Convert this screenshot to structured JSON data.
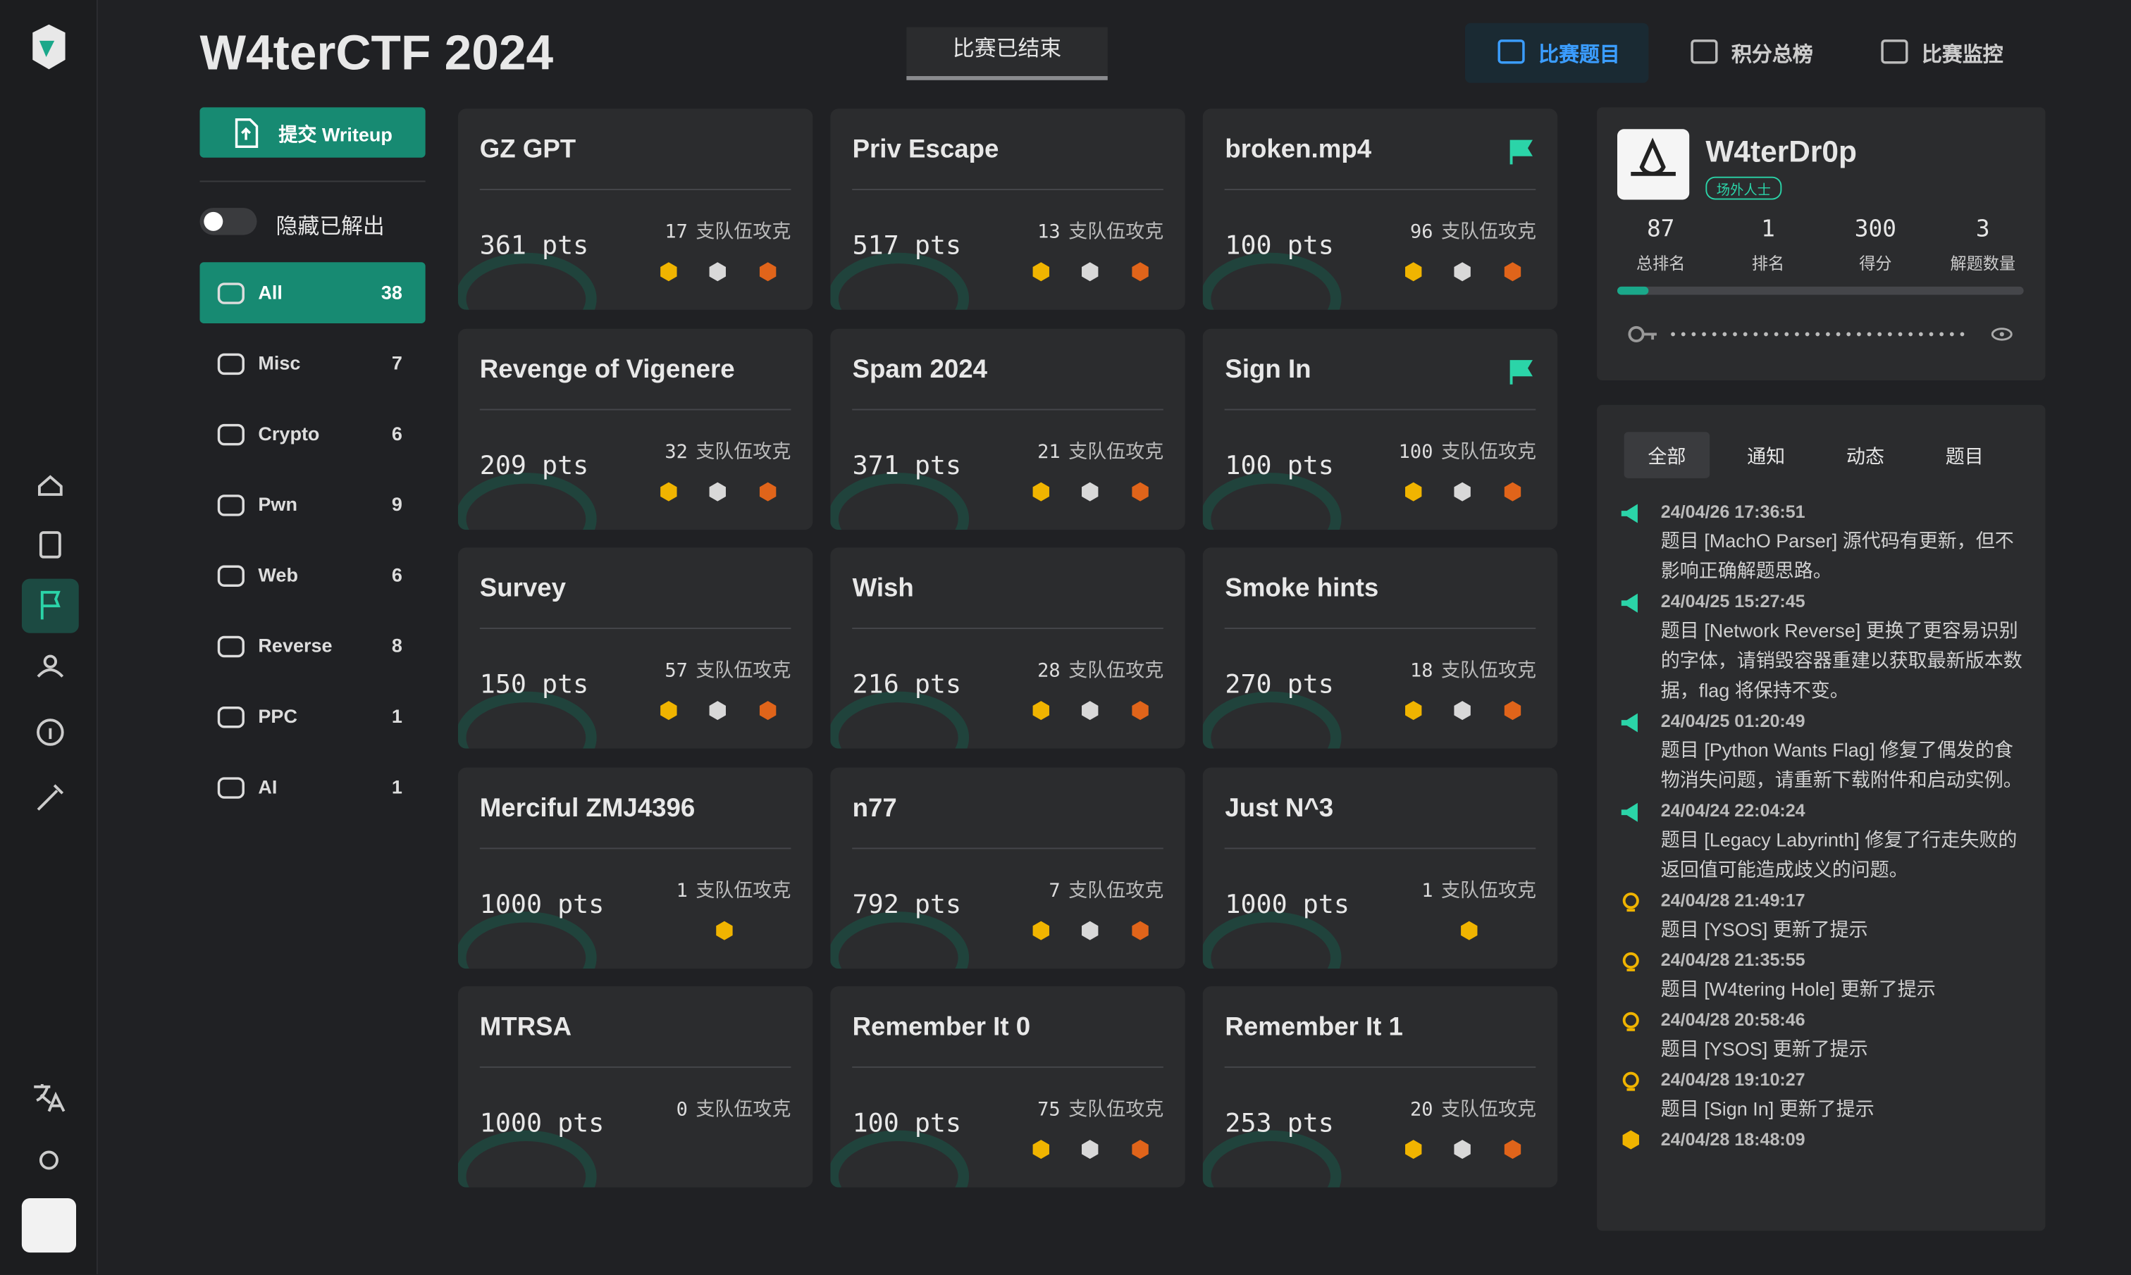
{
  "header": {
    "title": "W4terCTF 2024",
    "status": "比赛已结束",
    "nav": [
      "比赛题目",
      "积分总榜",
      "比赛监控"
    ]
  },
  "sidebar": {
    "submit": "提交 Writeup",
    "hide_solved": "隐藏已解出",
    "categories": [
      {
        "name": "All",
        "count": 38
      },
      {
        "name": "Misc",
        "count": 7
      },
      {
        "name": "Crypto",
        "count": 6
      },
      {
        "name": "Pwn",
        "count": 9
      },
      {
        "name": "Web",
        "count": 6
      },
      {
        "name": "Reverse",
        "count": 8
      },
      {
        "name": "PPC",
        "count": 1
      },
      {
        "name": "AI",
        "count": 1
      }
    ]
  },
  "solved_label": "支队伍攻克",
  "challenges": [
    {
      "title": "GZ GPT",
      "points": "361 pts",
      "solves": 17
    },
    {
      "title": "Priv Escape",
      "points": "517 pts",
      "solves": 13
    },
    {
      "title": "broken.mp4",
      "points": "100 pts",
      "solves": 96
    },
    {
      "title": "Revenge of Vigenere",
      "points": "209 pts",
      "solves": 32
    },
    {
      "title": "Spam 2024",
      "points": "371 pts",
      "solves": 21
    },
    {
      "title": "Sign In",
      "points": "100 pts",
      "solves": 100
    },
    {
      "title": "Survey",
      "points": "150 pts",
      "solves": 57
    },
    {
      "title": "Wish",
      "points": "216 pts",
      "solves": 28
    },
    {
      "title": "Smoke hints",
      "points": "270 pts",
      "solves": 18
    },
    {
      "title": "Merciful ZMJ4396",
      "points": "1000 pts",
      "solves": 1
    },
    {
      "title": "n77",
      "points": "792 pts",
      "solves": 7
    },
    {
      "title": "Just N^3",
      "points": "1000 pts",
      "solves": 1
    },
    {
      "title": "MTRSA",
      "points": "1000 pts",
      "solves": 0
    },
    {
      "title": "Remember It 0",
      "points": "100 pts",
      "solves": 75
    },
    {
      "title": "Remember It 1",
      "points": "253 pts",
      "solves": 20
    }
  ],
  "profile": {
    "name": "W4terDr0p",
    "tag": "场外人士",
    "stats": [
      {
        "value": 87,
        "label": "总排名"
      },
      {
        "value": 1,
        "label": "排名"
      },
      {
        "value": 300,
        "label": "得分"
      },
      {
        "value": 3,
        "label": "解题数量"
      }
    ]
  },
  "notices": {
    "tabs": [
      "全部",
      "通知",
      "动态",
      "题目"
    ],
    "items": [
      {
        "time": "24/04/26 17:36:51",
        "text": "题目 [MachO Parser] 源代码有更新，但不影响正确解题思路。"
      },
      {
        "time": "24/04/25 15:27:45",
        "text": "题目 [Network Reverse] 更换了更容易识别的字体，请销毁容器重建以获取最新版本数据，flag 将保持不变。"
      },
      {
        "time": "24/04/25 01:20:49",
        "text": "题目 [Python Wants Flag] 修复了偶发的食物消失问题，请重新下载附件和启动实例。"
      },
      {
        "time": "24/04/24 22:04:24",
        "text": "题目 [Legacy Labyrinth] 修复了行走失败的返回值可能造成歧义的问题。"
      },
      {
        "time": "24/04/28 21:49:17",
        "text": "题目 [YSOS] 更新了提示"
      },
      {
        "time": "24/04/28 21:35:55",
        "text": "题目 [W4tering Hole] 更新了提示"
      },
      {
        "time": "24/04/28 20:58:46",
        "text": "题目 [YSOS] 更新了提示"
      },
      {
        "time": "24/04/28 19:10:27",
        "text": "题目 [Sign In] 更新了提示"
      },
      {
        "time": "24/04/28 18:48:09"
      }
    ]
  }
}
